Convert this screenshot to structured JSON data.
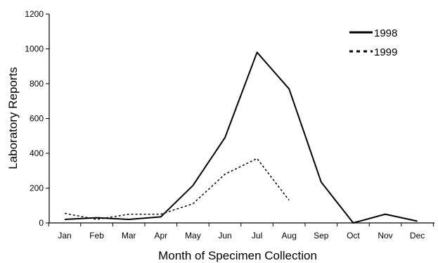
{
  "chart_data": {
    "type": "line",
    "categories": [
      "Jan",
      "Feb",
      "Mar",
      "Apr",
      "May",
      "Jun",
      "Jul",
      "Aug",
      "Sep",
      "Oct",
      "Nov",
      "Dec"
    ],
    "series": [
      {
        "name": "1998",
        "style": "solid",
        "color": "#000000",
        "values": [
          20,
          30,
          20,
          35,
          215,
          490,
          980,
          770,
          235,
          0,
          50,
          10
        ]
      },
      {
        "name": "1999",
        "style": "dotted",
        "color": "#000000",
        "values": [
          55,
          20,
          50,
          50,
          110,
          280,
          370,
          130,
          null,
          null,
          null,
          null
        ]
      }
    ],
    "xlabel": "Month of Specimen Collection",
    "ylabel": "Laboratory Reports",
    "ylim": [
      0,
      1200
    ],
    "yticks": [
      0,
      200,
      400,
      600,
      800,
      1000,
      1200
    ],
    "ytick_labels": [
      "0",
      "200",
      "400",
      "600",
      "800",
      "1000",
      "1200"
    ],
    "grid": false,
    "legend_position": "top-right"
  }
}
